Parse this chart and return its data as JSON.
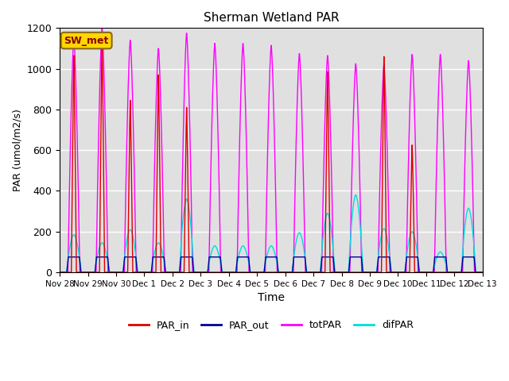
{
  "title": "Sherman Wetland PAR",
  "xlabel": "Time",
  "ylabel": "PAR (umol/m2/s)",
  "ylim": [
    0,
    1200
  ],
  "background_color": "#e0e0e0",
  "station_label": "SW_met",
  "legend_labels": [
    "PAR_in",
    "PAR_out",
    "totPAR",
    "difPAR"
  ],
  "line_colors": {
    "PAR_in": "#dd0000",
    "PAR_out": "#000099",
    "totPAR": "#ff00ff",
    "difPAR": "#00dddd"
  },
  "days": [
    "Nov 28",
    "Nov 29",
    "Nov 30",
    "Dec 1",
    "Dec 2",
    "Dec 3",
    "Dec 4",
    "Dec 5",
    "Dec 6",
    "Dec 7",
    "Dec 8",
    "Dec 9",
    "Dec 10",
    "Dec 11",
    "Dec 12",
    "Dec 13"
  ],
  "totPAR_peaks": [
    1150,
    1200,
    1140,
    1100,
    1175,
    1125,
    1125,
    1115,
    1075,
    1065,
    1025,
    1020,
    1070,
    1070,
    1040,
    0
  ],
  "PAR_in_peaks": [
    1065,
    1150,
    845,
    970,
    810,
    0,
    0,
    0,
    0,
    985,
    0,
    1060,
    625,
    0,
    0,
    0
  ],
  "PAR_out_peaks": [
    75,
    75,
    75,
    75,
    75,
    75,
    75,
    75,
    75,
    75,
    75,
    75,
    75,
    75,
    75,
    0
  ],
  "difPAR_peaks": [
    185,
    145,
    210,
    145,
    360,
    130,
    130,
    130,
    195,
    290,
    380,
    215,
    200,
    100,
    315,
    0
  ],
  "n_days": 15,
  "pts_per_day": 288
}
